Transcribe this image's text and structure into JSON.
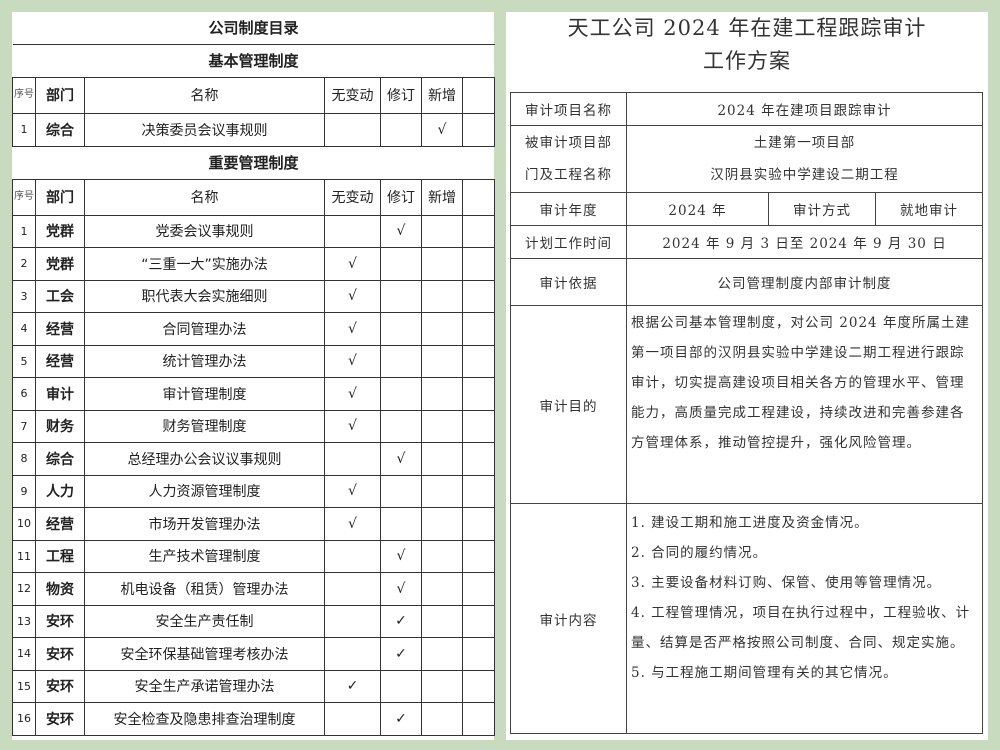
{
  "left": {
    "title": "公司制度目录",
    "basic_section": "基本管理制度",
    "important_section": "重要管理制度",
    "headers": {
      "seq": "序号",
      "dept": "部门",
      "name": "名称",
      "unchanged": "无变动",
      "revised": "修订",
      "added": "新增"
    },
    "basic_rows": [
      {
        "seq": "1",
        "dept": "综合",
        "name": "决策委员会议事规则",
        "unchanged": "",
        "revised": "",
        "added": "√"
      }
    ],
    "important_rows": [
      {
        "seq": "1",
        "dept": "党群",
        "name": "党委会议事规则",
        "unchanged": "",
        "revised": "√",
        "added": ""
      },
      {
        "seq": "2",
        "dept": "党群",
        "name": "“三重一大”实施办法",
        "unchanged": "√",
        "revised": "",
        "added": ""
      },
      {
        "seq": "3",
        "dept": "工会",
        "name": "职代表大会实施细则",
        "unchanged": "√",
        "revised": "",
        "added": ""
      },
      {
        "seq": "4",
        "dept": "经营",
        "name": "合同管理办法",
        "unchanged": "√",
        "revised": "",
        "added": ""
      },
      {
        "seq": "5",
        "dept": "经营",
        "name": "统计管理办法",
        "unchanged": "√",
        "revised": "",
        "added": ""
      },
      {
        "seq": "6",
        "dept": "审计",
        "name": "审计管理制度",
        "unchanged": "√",
        "revised": "",
        "added": ""
      },
      {
        "seq": "7",
        "dept": "财务",
        "name": "财务管理制度",
        "unchanged": "√",
        "revised": "",
        "added": ""
      },
      {
        "seq": "8",
        "dept": "综合",
        "name": "总经理办公会议议事规则",
        "unchanged": "",
        "revised": "√",
        "added": ""
      },
      {
        "seq": "9",
        "dept": "人力",
        "name": "人力资源管理制度",
        "unchanged": "√",
        "revised": "",
        "added": ""
      },
      {
        "seq": "10",
        "dept": "经营",
        "name": "市场开发管理办法",
        "unchanged": "√",
        "revised": "",
        "added": ""
      },
      {
        "seq": "11",
        "dept": "工程",
        "name": "生产技术管理制度",
        "unchanged": "",
        "revised": "√",
        "added": ""
      },
      {
        "seq": "12",
        "dept": "物资",
        "name": "机电设备（租赁）管理办法",
        "unchanged": "",
        "revised": "√",
        "added": ""
      },
      {
        "seq": "13",
        "dept": "安环",
        "name": "安全生产责任制",
        "unchanged": "",
        "revised": "✓",
        "added": ""
      },
      {
        "seq": "14",
        "dept": "安环",
        "name": "安全环保基础管理考核办法",
        "unchanged": "",
        "revised": "✓",
        "added": ""
      },
      {
        "seq": "15",
        "dept": "安环",
        "name": "安全生产承诺管理办法",
        "unchanged": "✓",
        "revised": "",
        "added": ""
      },
      {
        "seq": "16",
        "dept": "安环",
        "name": "安全检查及隐患排查治理制度",
        "unchanged": "",
        "revised": "✓",
        "added": ""
      }
    ]
  },
  "right": {
    "title_line1": "天工公司 2024 年在建工程跟踪审计",
    "title_line2": "工作方案",
    "project_name_label": "审计项目名称",
    "project_name": "2024 年在建项目跟踪审计",
    "audited_label_1": "被审计项目部",
    "audited_label_2": "门及工程名称",
    "audited_dept": "土建第一项目部",
    "audited_project": "汉阴县实验中学建设二期工程",
    "year_label": "审计年度",
    "year": "2024 年",
    "method_label": "审计方式",
    "method": "就地审计",
    "time_label": "计划工作时间",
    "time": "2024 年 9 月 3 日至 2024 年 9 月 30 日",
    "basis_label": "审计依据",
    "basis": "公司管理制度内部审计制度",
    "purpose_label": "审计目的",
    "purpose": "根据公司基本管理制度，对公司 2024 年度所属土建第一项目部的汉阴县实验中学建设二期工程进行跟踪审计，切实提高建设项目相关各方的管理水平、管理能力，高质量完成工程建设，持续改进和完善参建各方管理体系，推动管控提升，强化风险管理。",
    "content_label": "审计内容",
    "content_items": [
      "1.  建设工期和施工进度及资金情况。",
      "2.  合同的履约情况。",
      "3.  主要设备材料订购、保管、使用等管理情况。",
      "4.  工程管理情况，项目在执行过程中，工程验收、计量、结算是否严格按照公司制度、合同、规定实施。",
      "5.  与工程施工期间管理有关的其它情况。"
    ]
  },
  "colors": {
    "background": "#c8dbbf",
    "paper": "#ffffff",
    "border": "#333333"
  }
}
